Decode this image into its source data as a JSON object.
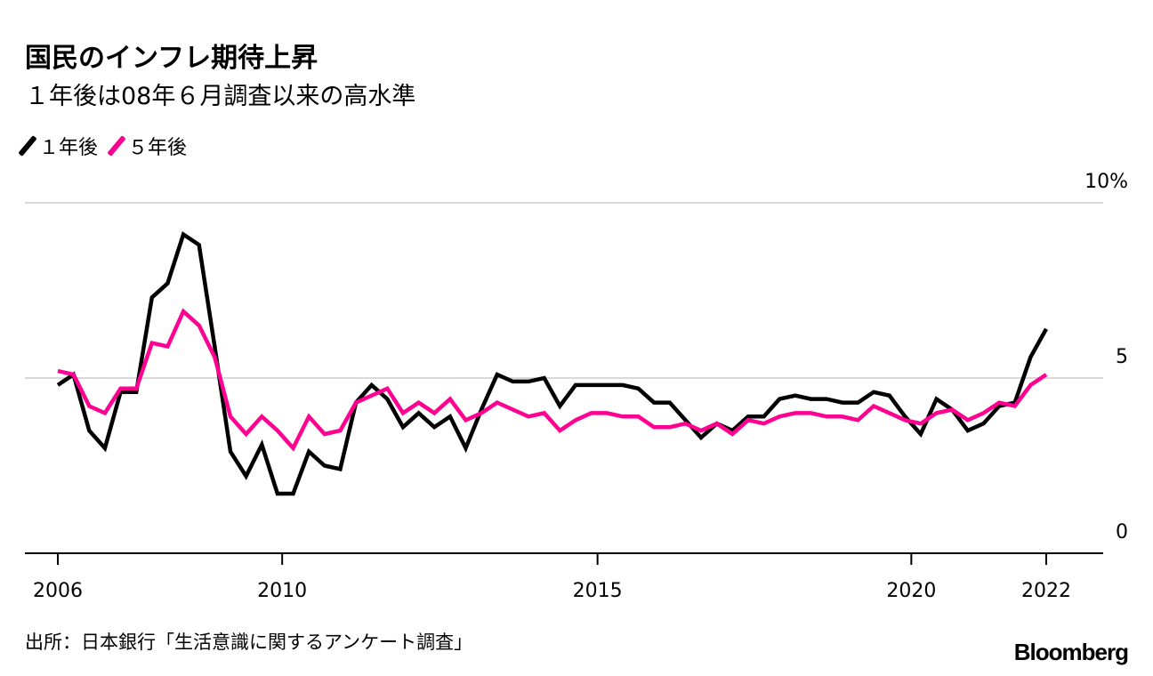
{
  "header": {
    "title": "国民のインフレ期待上昇",
    "subtitle": "１年後は08年６月調査以来の高水準"
  },
  "footer": {
    "source": "出所：日本銀行「生活意識に関するアンケート調査」",
    "logo": "Bloomberg"
  },
  "colors": {
    "one_year": "#000000",
    "five_year": "#ff0090",
    "grid": "#d9d9d9"
  },
  "chart_data": {
    "type": "line",
    "title": "国民のインフレ期待上昇",
    "subtitle": "１年後は08年６月調査以来の高水準",
    "frequency": "quarterly",
    "ylim": [
      0,
      10
    ],
    "y_ticks": [
      {
        "value": 10,
        "label": "10%"
      },
      {
        "value": 5,
        "label": "5"
      },
      {
        "value": 0,
        "label": "0"
      }
    ],
    "x_ticks": [
      {
        "index": 0,
        "label": "2006"
      },
      {
        "index": 14.3,
        "label": "2010"
      },
      {
        "index": 34.4,
        "label": "2015"
      },
      {
        "index": 54.4,
        "label": "2020"
      },
      {
        "index": 63,
        "label": "2022"
      }
    ],
    "grid": "horizontal",
    "legend": "top-left",
    "series": [
      {
        "name": "１年後",
        "color": "#000000",
        "values": [
          4.8,
          5.1,
          3.5,
          3.0,
          4.6,
          4.6,
          7.3,
          7.7,
          9.1,
          8.8,
          5.9,
          2.9,
          2.2,
          3.1,
          1.7,
          1.7,
          2.9,
          2.5,
          2.4,
          4.3,
          4.8,
          4.4,
          3.6,
          4.0,
          3.6,
          3.9,
          3.0,
          4.1,
          5.1,
          4.9,
          4.9,
          5.0,
          4.2,
          4.8,
          4.8,
          4.8,
          4.8,
          4.7,
          4.3,
          4.3,
          3.8,
          3.3,
          3.7,
          3.5,
          3.9,
          3.9,
          4.4,
          4.5,
          4.4,
          4.4,
          4.3,
          4.3,
          4.6,
          4.5,
          3.9,
          3.4,
          4.4,
          4.1,
          3.5,
          3.7,
          4.2,
          4.3,
          5.6,
          6.4
        ]
      },
      {
        "name": "５年後",
        "color": "#ff0090",
        "values": [
          5.2,
          5.1,
          4.2,
          4.0,
          4.7,
          4.7,
          6.0,
          5.9,
          6.9,
          6.5,
          5.6,
          3.9,
          3.4,
          3.9,
          3.5,
          3.0,
          3.9,
          3.4,
          3.5,
          4.3,
          4.5,
          4.7,
          4.0,
          4.3,
          4.0,
          4.4,
          3.8,
          4.0,
          4.3,
          4.1,
          3.9,
          4.0,
          3.5,
          3.8,
          4.0,
          4.0,
          3.9,
          3.9,
          3.6,
          3.6,
          3.7,
          3.5,
          3.7,
          3.4,
          3.8,
          3.7,
          3.9,
          4.0,
          4.0,
          3.9,
          3.9,
          3.8,
          4.2,
          4.0,
          3.8,
          3.7,
          4.0,
          4.1,
          3.8,
          4.0,
          4.3,
          4.2,
          4.8,
          5.1
        ]
      }
    ]
  }
}
